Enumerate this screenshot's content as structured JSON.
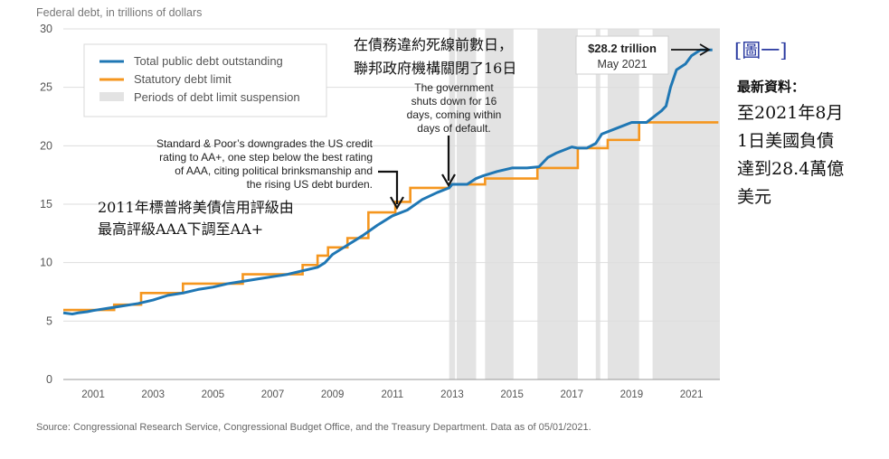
{
  "chart_data": {
    "type": "line",
    "ylabel": "Federal debt, in trillions of dollars",
    "xlim": [
      2000.0,
      2021.95
    ],
    "ylim": [
      0,
      30
    ],
    "x_ticks": [
      "2001",
      "2003",
      "2005",
      "2007",
      "2009",
      "2011",
      "2013",
      "2015",
      "2017",
      "2019",
      "2021"
    ],
    "x_tick_values": [
      2001.0,
      2003.0,
      2005.0,
      2007.0,
      2009.0,
      2011.0,
      2013.0,
      2015.0,
      2017.0,
      2019.0,
      2021.0
    ],
    "y_ticks": [
      "0",
      "5",
      "10",
      "15",
      "20",
      "25",
      "30"
    ],
    "y_tick_values": [
      0,
      5,
      10,
      15,
      20,
      25,
      30
    ],
    "legend": [
      {
        "label": "Total public debt outstanding",
        "color": "#1f77b4",
        "kind": "line"
      },
      {
        "label": "Statutory debt limit",
        "color": "#f5961e",
        "kind": "line"
      },
      {
        "label": "Periods of debt limit suspension",
        "color": "#e3e3e3",
        "kind": "band"
      }
    ],
    "suspension_periods": [
      [
        2012.9,
        2013.1
      ],
      [
        2013.15,
        2013.8
      ],
      [
        2014.1,
        2015.05
      ],
      [
        2015.85,
        2017.2
      ],
      [
        2017.8,
        2017.95
      ],
      [
        2018.2,
        2019.25
      ],
      [
        2019.7,
        2021.95
      ]
    ],
    "series": [
      {
        "name": "Total public debt outstanding",
        "color": "#1f77b4",
        "x": [
          2000.0,
          2000.3,
          2000.5,
          2000.8,
          2001.0,
          2001.5,
          2002.0,
          2002.5,
          2003.0,
          2003.5,
          2004.0,
          2004.5,
          2005.0,
          2005.5,
          2006.0,
          2006.5,
          2007.0,
          2007.5,
          2008.0,
          2008.5,
          2008.75,
          2009.0,
          2009.5,
          2010.0,
          2010.5,
          2011.0,
          2011.5,
          2012.0,
          2012.5,
          2012.9,
          2013.0,
          2013.5,
          2013.8,
          2014.0,
          2014.5,
          2015.0,
          2015.5,
          2015.9,
          2016.2,
          2016.5,
          2017.0,
          2017.2,
          2017.5,
          2017.8,
          2018.0,
          2018.5,
          2019.0,
          2019.2,
          2019.5,
          2019.8,
          2020.0,
          2020.15,
          2020.3,
          2020.5,
          2020.8,
          2021.0,
          2021.3,
          2021.7
        ],
        "y": [
          5.7,
          5.6,
          5.7,
          5.8,
          5.9,
          6.1,
          6.3,
          6.5,
          6.8,
          7.2,
          7.4,
          7.7,
          7.9,
          8.2,
          8.4,
          8.6,
          8.8,
          9.0,
          9.3,
          9.6,
          10.0,
          10.7,
          11.5,
          12.3,
          13.2,
          14.0,
          14.5,
          15.4,
          16.0,
          16.4,
          16.7,
          16.7,
          17.2,
          17.4,
          17.8,
          18.1,
          18.1,
          18.2,
          19.0,
          19.4,
          19.9,
          19.8,
          19.8,
          20.2,
          21.0,
          21.5,
          22.0,
          22.0,
          22.0,
          22.6,
          23.0,
          23.4,
          25.0,
          26.5,
          27.0,
          27.7,
          28.2,
          28.2
        ]
      },
      {
        "name": "Statutory debt limit",
        "color": "#f5961e",
        "step": true,
        "x": [
          2000.0,
          2001.7,
          2002.6,
          2004.0,
          2006.0,
          2008.0,
          2008.5,
          2008.85,
          2009.5,
          2010.2,
          2011.1,
          2011.6,
          2012.9,
          2013.8,
          2014.1,
          2015.85,
          2017.2,
          2017.8,
          2018.2,
          2019.25,
          2019.7,
          2021.9
        ],
        "y": [
          5.95,
          6.4,
          7.4,
          8.2,
          9.0,
          9.8,
          10.6,
          11.3,
          12.1,
          14.3,
          15.2,
          16.4,
          16.7,
          16.7,
          17.2,
          18.1,
          19.8,
          19.8,
          20.5,
          22.0,
          22.0,
          22.0
        ]
      }
    ],
    "annotations": {
      "dg_text": [
        "Standard & Poor’s downgrades the US credit",
        "rating to AA+, one step below the best rating",
        "of AAA, citing political brinksmanship and",
        "the rising US debt burden."
      ],
      "shutdown_text": [
        "The government",
        "shuts down for 16",
        "days, coming within",
        "days of default."
      ],
      "callout_value": "$28.2 trillion",
      "callout_date": "May 2021"
    },
    "overlays": {
      "cjk_downgrade": [
        "2011年標普將美債信用評級由",
        "最高評級AAA下調至AA+"
      ],
      "cjk_shutdown": [
        "在債務違約死線前數日，",
        "聯邦政府機構關閉了16日"
      ],
      "fig_label": "[圖一]",
      "latest_heading": "最新資料：",
      "latest_lines": [
        "至2021年8月",
        "1日美國負債",
        "達到28.4萬億",
        "美元"
      ]
    },
    "source": "Source: Congressional Research Service, Congressional Budget Office, and the Treasury Department. Data as of 05/01/2021.",
    "colors": {
      "debt": "#1f77b4",
      "limit": "#f5961e",
      "band": "#e3e3e3",
      "grid": "#dddddd",
      "text": "#333333",
      "label_blue": "#2a3aa0"
    }
  }
}
